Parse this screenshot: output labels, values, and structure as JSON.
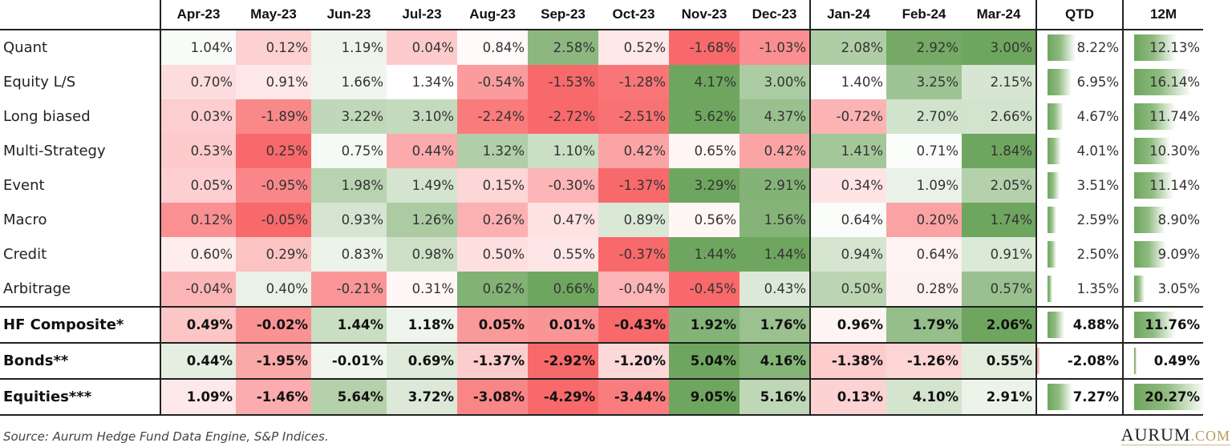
{
  "chart_data": {
    "type": "table",
    "title": "Hedge fund strategy monthly returns heatmap",
    "columns": [
      "Apr-23",
      "May-23",
      "Jun-23",
      "Jul-23",
      "Aug-23",
      "Sep-23",
      "Oct-23",
      "Nov-23",
      "Dec-23",
      "Jan-24",
      "Feb-24",
      "Mar-24",
      "QTD",
      "12M"
    ],
    "rows": [
      {
        "label": "Quant",
        "values": [
          1.04,
          0.12,
          1.19,
          0.04,
          0.84,
          2.58,
          0.52,
          -1.68,
          -1.03,
          2.08,
          2.92,
          3.0
        ],
        "qtd": 8.22,
        "m12": 12.13
      },
      {
        "label": "Equity L/S",
        "values": [
          0.7,
          0.91,
          1.66,
          1.34,
          -0.54,
          -1.53,
          -1.28,
          4.17,
          3.0,
          1.4,
          3.25,
          2.15
        ],
        "qtd": 6.95,
        "m12": 16.14
      },
      {
        "label": "Long biased",
        "values": [
          0.03,
          -1.89,
          3.22,
          3.1,
          -2.24,
          -2.72,
          -2.51,
          5.62,
          4.37,
          -0.72,
          2.7,
          2.66
        ],
        "qtd": 4.67,
        "m12": 11.74
      },
      {
        "label": "Multi-Strategy",
        "values": [
          0.53,
          0.25,
          0.75,
          0.44,
          1.32,
          1.1,
          0.42,
          0.65,
          0.42,
          1.41,
          0.71,
          1.84
        ],
        "qtd": 4.01,
        "m12": 10.3
      },
      {
        "label": "Event",
        "values": [
          0.05,
          -0.95,
          1.98,
          1.49,
          0.15,
          -0.3,
          -1.37,
          3.29,
          2.91,
          0.34,
          1.09,
          2.05
        ],
        "qtd": 3.51,
        "m12": 11.14
      },
      {
        "label": "Macro",
        "values": [
          0.12,
          -0.05,
          0.93,
          1.26,
          0.26,
          0.47,
          0.89,
          0.56,
          1.56,
          0.64,
          0.2,
          1.74
        ],
        "qtd": 2.59,
        "m12": 8.9
      },
      {
        "label": "Credit",
        "values": [
          0.6,
          0.29,
          0.83,
          0.98,
          0.5,
          0.55,
          -0.37,
          1.44,
          1.44,
          0.94,
          0.64,
          0.91
        ],
        "qtd": 2.5,
        "m12": 9.09
      },
      {
        "label": "Arbitrage",
        "values": [
          -0.04,
          0.4,
          -0.21,
          0.31,
          0.62,
          0.66,
          -0.04,
          -0.45,
          0.43,
          0.5,
          0.28,
          0.57
        ],
        "qtd": 1.35,
        "m12": 3.05
      },
      {
        "label": "HF Composite*",
        "values": [
          0.49,
          -0.02,
          1.44,
          1.18,
          0.05,
          0.01,
          -0.43,
          1.92,
          1.76,
          0.96,
          1.79,
          2.06
        ],
        "qtd": 4.88,
        "m12": 11.76,
        "bold": true
      },
      {
        "label": "Bonds**",
        "values": [
          0.44,
          -1.95,
          -0.01,
          0.69,
          -1.37,
          -2.92,
          -1.2,
          5.04,
          4.16,
          -1.38,
          -1.26,
          0.55
        ],
        "qtd": -2.08,
        "m12": 0.49,
        "bold": true
      },
      {
        "label": "Equities***",
        "values": [
          1.09,
          -1.46,
          5.64,
          3.72,
          -3.08,
          -4.29,
          -3.44,
          9.05,
          5.16,
          0.13,
          4.1,
          2.91
        ],
        "qtd": 7.27,
        "m12": 20.27,
        "bold": true
      }
    ],
    "colors": {
      "min": "#f8696b",
      "mid": "#ffffff",
      "max": "#6fa65f"
    }
  },
  "footer": {
    "source": "Source: Aurum Hedge Fund Data Engine, S&P Indices.",
    "brand_main": "AURUM",
    "brand_domain": ".COM"
  }
}
